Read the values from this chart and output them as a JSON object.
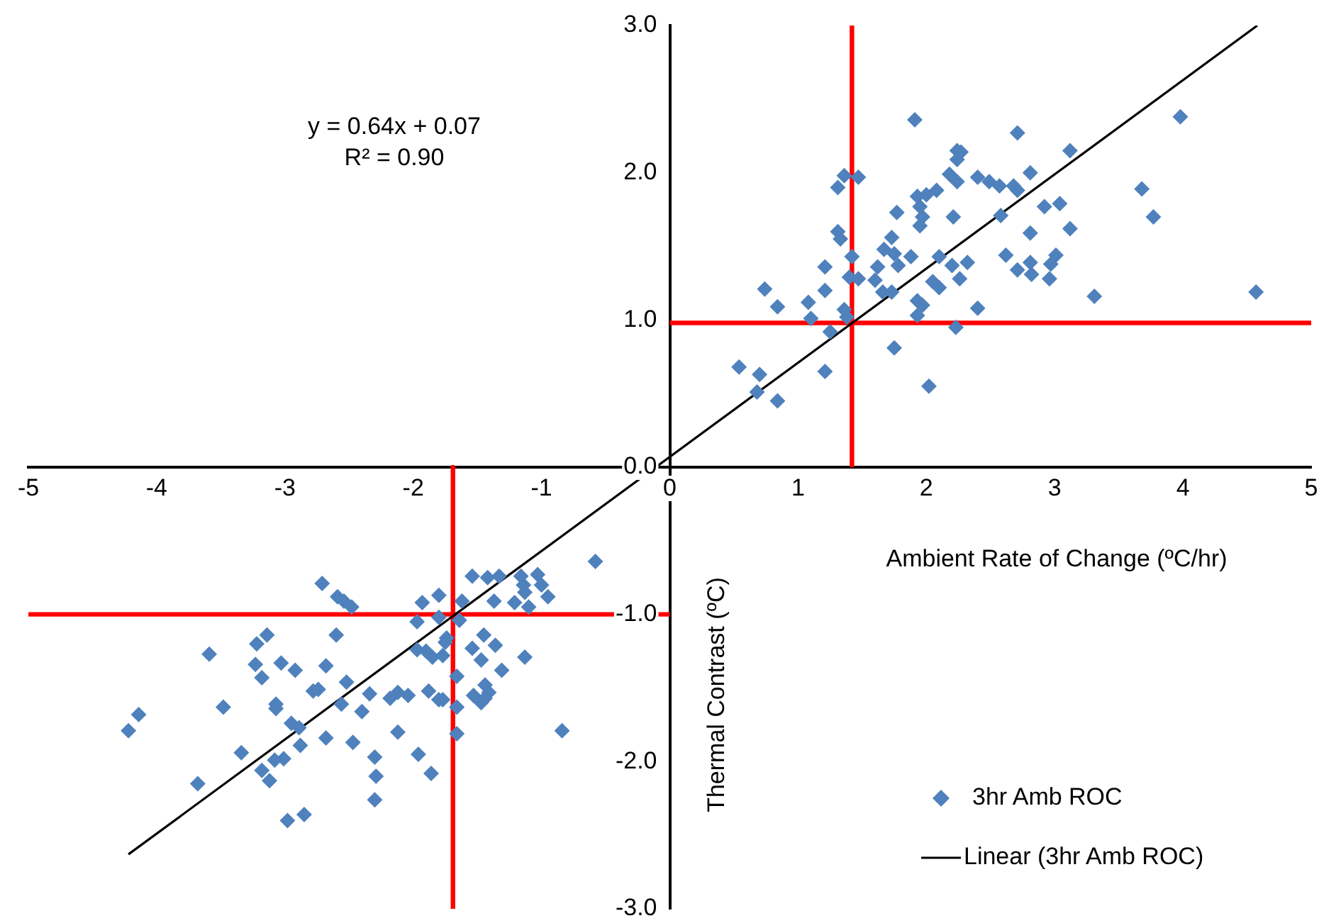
{
  "chart_data": {
    "type": "scatter",
    "xlabel": "Ambient Rate of Change (ºC/hr)",
    "ylabel": "Thermal Contrast (ºC)",
    "annotations": [
      "y = 0.64x + 0.07",
      "R² = 0.90"
    ],
    "xlim": [
      -5,
      5
    ],
    "xticks": [
      -5,
      -4,
      -3,
      -2,
      -1,
      0,
      1,
      2,
      3,
      4,
      5
    ],
    "ylim": [
      -3,
      3
    ],
    "yticks": [
      {
        "value": -3,
        "label": "-3.0"
      },
      {
        "value": -2,
        "label": "-2.0"
      },
      {
        "value": -1,
        "label": "-1.0"
      },
      {
        "value": 0,
        "label": "0.0"
      },
      {
        "value": 1,
        "label": "1.0"
      },
      {
        "value": 2,
        "label": "2.0"
      },
      {
        "value": 3,
        "label": "3.0"
      }
    ],
    "grid": false,
    "legend": "bottom right",
    "series": [
      {
        "name": "3hr Amb ROC",
        "type": "scatter",
        "marker": "diamond",
        "color": "#4f81bd",
        "x": [
          1.91,
          3.98,
          2.71,
          2.24,
          2.27,
          2.24,
          3.12,
          2.18,
          2.24,
          2.4,
          2.49,
          2.57,
          2.68,
          2.71,
          2.81,
          3.68,
          3.77,
          2.21,
          2.58,
          2.92,
          3.04,
          2.81,
          3.12,
          2.2,
          2.32,
          2.62,
          2.81,
          3.01,
          2.97,
          2.71,
          2.82,
          2.96,
          2.26,
          3.31,
          4.57,
          2.4,
          2.23,
          1.36,
          1.47,
          1.31,
          1.93,
          2.0,
          2.08,
          1.95,
          1.97,
          1.95,
          1.77,
          1.31,
          1.33,
          1.73,
          1.67,
          1.75,
          1.88,
          1.42,
          1.62,
          1.78,
          1.6,
          1.4,
          1.47,
          1.21,
          2.1,
          0.74,
          1.21,
          1.66,
          1.73,
          2.05,
          2.1,
          0.84,
          1.08,
          1.93,
          1.97,
          1.93,
          1.36,
          1.38,
          1.1,
          1.25,
          1.75,
          0.54,
          0.7,
          1.21,
          0.68,
          0.84,
          2.02,
          -2.71,
          -2.59,
          -2.54,
          -2.48,
          -3.14,
          -3.22,
          -3.59,
          -3.23,
          -3.18,
          -3.03,
          -2.92,
          -2.68,
          -2.6,
          -2.52,
          -2.78,
          -2.74,
          -3.07,
          -3.07,
          -3.48,
          -4.14,
          -4.22,
          -2.95,
          -2.89,
          -2.56,
          -2.4,
          -3.34,
          -2.88,
          -2.68,
          -2.47,
          -3.08,
          -3.01,
          -3.18,
          -3.12,
          -3.68,
          -2.98,
          -2.85,
          -0.58,
          -1.54,
          -1.42,
          -1.33,
          -1.16,
          -1.03,
          -1.14,
          -1.0,
          -0.95,
          -1.13,
          -1.8,
          -1.93,
          -1.62,
          -1.37,
          -1.21,
          -1.1,
          -1.97,
          -1.8,
          -1.64,
          -1.74,
          -1.75,
          -1.45,
          -1.36,
          -1.54,
          -1.47,
          -1.13,
          -1.97,
          -1.9,
          -1.85,
          -1.77,
          -1.31,
          -1.66,
          -2.34,
          -2.18,
          -2.12,
          -2.04,
          -1.88,
          -1.8,
          -1.77,
          -1.66,
          -1.53,
          -1.44,
          -1.44,
          -1.47,
          -1.41,
          -2.12,
          -1.96,
          -1.66,
          -0.84,
          -2.3,
          -2.29,
          -1.86,
          -2.3
        ],
        "values": [
          2.36,
          2.38,
          2.27,
          2.15,
          2.14,
          2.09,
          2.15,
          1.99,
          1.94,
          1.97,
          1.94,
          1.91,
          1.91,
          1.88,
          2.0,
          1.89,
          1.7,
          1.7,
          1.71,
          1.77,
          1.79,
          1.59,
          1.62,
          1.37,
          1.39,
          1.44,
          1.39,
          1.44,
          1.38,
          1.34,
          1.31,
          1.28,
          1.28,
          1.16,
          1.19,
          1.08,
          0.95,
          1.98,
          1.97,
          1.9,
          1.84,
          1.85,
          1.88,
          1.77,
          1.7,
          1.64,
          1.73,
          1.6,
          1.55,
          1.56,
          1.48,
          1.45,
          1.43,
          1.43,
          1.36,
          1.37,
          1.27,
          1.29,
          1.28,
          1.36,
          1.43,
          1.21,
          1.2,
          1.19,
          1.19,
          1.26,
          1.22,
          1.09,
          1.12,
          1.13,
          1.1,
          1.03,
          1.07,
          1.02,
          1.01,
          0.92,
          0.81,
          0.68,
          0.63,
          0.65,
          0.51,
          0.45,
          0.55,
          -0.79,
          -0.88,
          -0.91,
          -0.95,
          -1.14,
          -1.2,
          -1.27,
          -1.34,
          -1.43,
          -1.33,
          -1.38,
          -1.35,
          -1.14,
          -1.46,
          -1.52,
          -1.51,
          -1.61,
          -1.64,
          -1.63,
          -1.68,
          -1.79,
          -1.74,
          -1.77,
          -1.61,
          -1.66,
          -1.94,
          -1.89,
          -1.84,
          -1.87,
          -1.99,
          -1.98,
          -2.06,
          -2.13,
          -2.15,
          -2.4,
          -2.36,
          -0.64,
          -0.74,
          -0.75,
          -0.74,
          -0.74,
          -0.73,
          -0.8,
          -0.8,
          -0.88,
          -0.85,
          -0.87,
          -0.92,
          -0.91,
          -0.91,
          -0.92,
          -0.95,
          -1.05,
          -1.02,
          -1.04,
          -1.16,
          -1.19,
          -1.14,
          -1.21,
          -1.23,
          -1.31,
          -1.29,
          -1.24,
          -1.25,
          -1.29,
          -1.28,
          -1.38,
          -1.42,
          -1.54,
          -1.57,
          -1.53,
          -1.55,
          -1.52,
          -1.58,
          -1.58,
          -1.63,
          -1.55,
          -1.48,
          -1.57,
          -1.6,
          -1.53,
          -1.8,
          -1.95,
          -1.81,
          -1.79,
          -1.97,
          -2.1,
          -2.08,
          -2.26
        ]
      },
      {
        "name": "Linear (3hr Amb ROC)",
        "type": "line",
        "color": "#000000",
        "x": [
          -4.22,
          4.58
        ],
        "values": [
          -2.63,
          3.0
        ]
      },
      {
        "type": "line",
        "color": "#ff0000",
        "x": [
          1.42,
          1.42
        ],
        "values": [
          0,
          3
        ]
      },
      {
        "type": "line",
        "color": "#ff0000",
        "x": [
          0,
          5
        ],
        "values": [
          0.98,
          0.98
        ]
      },
      {
        "type": "line",
        "color": "#ff0000",
        "x": [
          -1.69,
          -1.69
        ],
        "values": [
          0,
          -3
        ]
      },
      {
        "type": "line",
        "color": "#ff0000",
        "x": [
          -5,
          0
        ],
        "values": [
          -1.0,
          -1.0
        ]
      }
    ]
  }
}
